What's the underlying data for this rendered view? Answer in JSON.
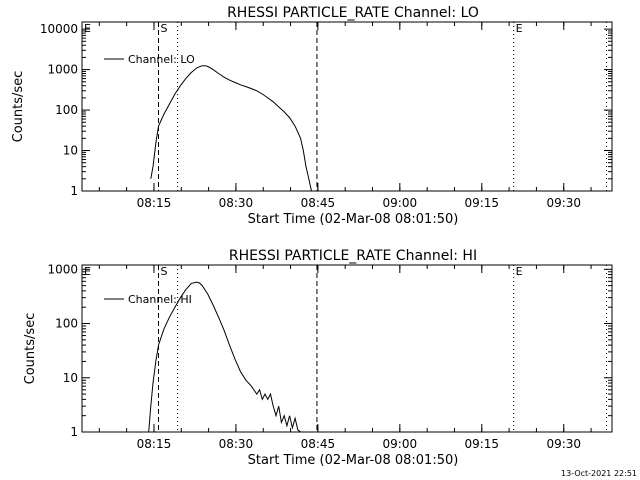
{
  "footer": {
    "timestamp": "13-Oct-2021 22:51"
  },
  "chart_data": [
    {
      "type": "line",
      "title": "RHESSI PARTICLE_RATE Channel: LO",
      "xlabel": "Start Time (02-Mar-08 08:01:50)",
      "ylabel": "Counts/sec",
      "yscale": "log",
      "xlim_minutes": [
        0,
        97
      ],
      "ylim": [
        1,
        15000
      ],
      "x_ticks": [
        {
          "label": "08:15",
          "t": 13.17
        },
        {
          "label": "08:30",
          "t": 28.17
        },
        {
          "label": "08:45",
          "t": 43.17
        },
        {
          "label": "09:00",
          "t": 58.17
        },
        {
          "label": "09:15",
          "t": 73.17
        },
        {
          "label": "09:30",
          "t": 88.17
        }
      ],
      "y_ticks": [
        {
          "label": "1",
          "v": 1
        },
        {
          "label": "10",
          "v": 10
        },
        {
          "label": "100",
          "v": 100
        },
        {
          "label": "1000",
          "v": 1000
        },
        {
          "label": "10000",
          "v": 10000
        }
      ],
      "legend": {
        "label": "Channel: LO",
        "position": "top-left"
      },
      "markers": [
        {
          "label": "E",
          "t": 0,
          "style": "none"
        },
        {
          "label": "S",
          "t": 14.0,
          "style": "dashed"
        },
        {
          "label": "",
          "t": 17.5,
          "style": "dotted"
        },
        {
          "label": "",
          "t": 43.0,
          "style": "dashed"
        },
        {
          "label": "E",
          "t": 79.0,
          "style": "dotted"
        },
        {
          "label": "",
          "t": 96.0,
          "style": "dotted"
        }
      ],
      "series": [
        {
          "name": "Channel: LO",
          "x": [
            12.6,
            13.0,
            13.5,
            14.0,
            15.0,
            16.0,
            17.0,
            18.0,
            19.0,
            20.0,
            21.0,
            22.0,
            22.5,
            23.0,
            24.0,
            25.0,
            26.0,
            27.0,
            28.0,
            29.0,
            30.0,
            31.0,
            32.0,
            33.0,
            34.0,
            35.0,
            36.0,
            37.0,
            38.0,
            39.0,
            40.0,
            40.5,
            41.0,
            41.5,
            42.0
          ],
          "y": [
            2,
            4,
            15,
            40,
            80,
            140,
            250,
            400,
            600,
            850,
            1100,
            1250,
            1250,
            1200,
            1000,
            800,
            650,
            550,
            480,
            420,
            380,
            340,
            300,
            250,
            200,
            160,
            120,
            90,
            65,
            40,
            20,
            10,
            4,
            2,
            1
          ]
        }
      ]
    },
    {
      "type": "line",
      "title": "RHESSI PARTICLE_RATE Channel: HI",
      "xlabel": "Start Time (02-Mar-08 08:01:50)",
      "ylabel": "Counts/sec",
      "yscale": "log",
      "xlim_minutes": [
        0,
        97
      ],
      "ylim": [
        1,
        1200
      ],
      "x_ticks": [
        {
          "label": "08:15",
          "t": 13.17
        },
        {
          "label": "08:30",
          "t": 28.17
        },
        {
          "label": "08:45",
          "t": 43.17
        },
        {
          "label": "09:00",
          "t": 58.17
        },
        {
          "label": "09:15",
          "t": 73.17
        },
        {
          "label": "09:30",
          "t": 88.17
        }
      ],
      "y_ticks": [
        {
          "label": "1",
          "v": 1
        },
        {
          "label": "10",
          "v": 10
        },
        {
          "label": "100",
          "v": 100
        },
        {
          "label": "1000",
          "v": 1000
        }
      ],
      "legend": {
        "label": "Channel: HI",
        "position": "top-left"
      },
      "markers": [
        {
          "label": "E",
          "t": 0,
          "style": "none"
        },
        {
          "label": "S",
          "t": 14.0,
          "style": "dashed"
        },
        {
          "label": "",
          "t": 17.5,
          "style": "dotted"
        },
        {
          "label": "",
          "t": 43.0,
          "style": "dashed"
        },
        {
          "label": "E",
          "t": 79.0,
          "style": "dotted"
        },
        {
          "label": "",
          "t": 96.0,
          "style": "dotted"
        }
      ],
      "series": [
        {
          "name": "Channel: HI",
          "x": [
            12.2,
            12.6,
            13.0,
            13.5,
            14.0,
            15.0,
            16.0,
            17.0,
            18.0,
            19.0,
            20.0,
            21.0,
            21.5,
            22.0,
            23.0,
            24.0,
            25.0,
            26.0,
            27.0,
            28.0,
            29.0,
            30.0,
            31.0,
            32.0,
            32.5,
            33.0,
            33.5,
            34.0,
            34.5,
            35.0,
            35.5,
            36.0,
            36.5,
            37.0,
            37.5,
            38.0,
            38.5,
            39.0,
            39.5,
            40.0
          ],
          "y": [
            1,
            3,
            8,
            20,
            40,
            80,
            130,
            200,
            300,
            420,
            550,
            580,
            560,
            500,
            350,
            220,
            130,
            75,
            40,
            22,
            13,
            9,
            7,
            5,
            6,
            4,
            5,
            4,
            5,
            3,
            2,
            3,
            1.5,
            2,
            1.3,
            2,
            1.2,
            1.8,
            1.1,
            1
          ]
        }
      ]
    }
  ]
}
